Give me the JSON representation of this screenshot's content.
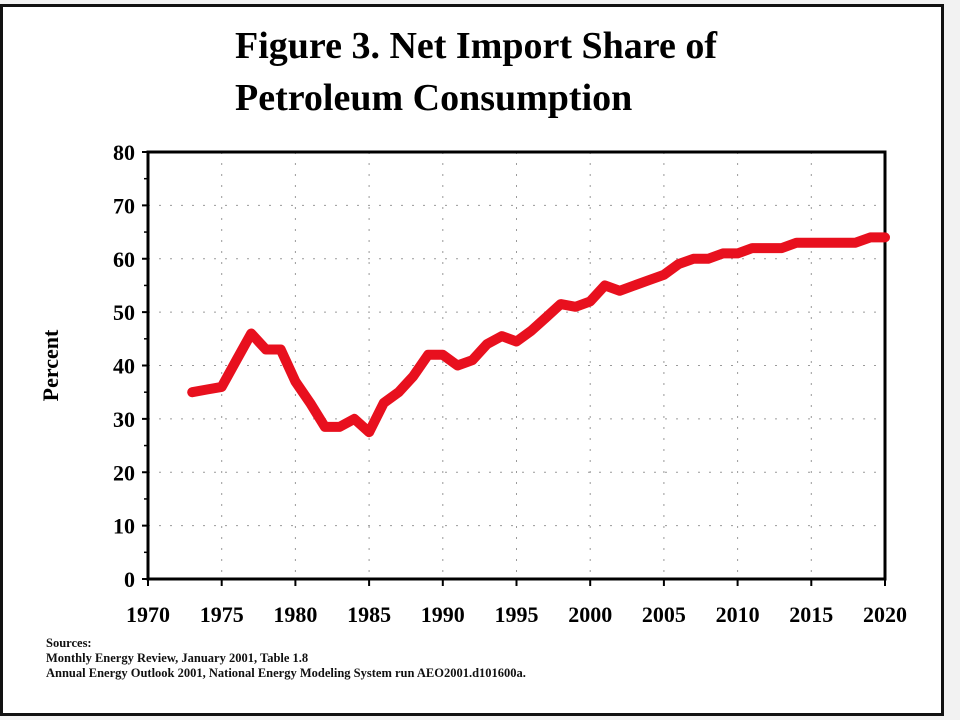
{
  "title_lines": [
    "Figure 3.  Net Import Share of",
    "Petroleum Consumption"
  ],
  "sources": {
    "heading": "Sources:",
    "lines": [
      "Monthly Energy Review, January 2001, Table 1.8",
      "Annual Energy Outlook 2001, National Energy Modeling System run AEO2001.d101600a."
    ]
  },
  "colors": {
    "line": "#e8101e",
    "axis": "#000000",
    "grid": "#9a9a9a"
  },
  "chart_data": {
    "type": "line",
    "title": "Figure 3.  Net Import Share of Petroleum Consumption",
    "xlabel": "",
    "ylabel": "Percent",
    "xlim": [
      1970,
      2020
    ],
    "ylim": [
      0,
      80
    ],
    "xticks": [
      1970,
      1975,
      1980,
      1985,
      1990,
      1995,
      2000,
      2005,
      2010,
      2015,
      2020
    ],
    "yticks": [
      0,
      10,
      20,
      30,
      40,
      50,
      60,
      70,
      80
    ],
    "grid": true,
    "legend": "none",
    "series": [
      {
        "x": [
          1973,
          1974,
          1975,
          1976,
          1977,
          1978,
          1979,
          1980,
          1981,
          1982,
          1983,
          1984,
          1985,
          1986,
          1987,
          1988,
          1989,
          1990,
          1991,
          1992,
          1993,
          1994,
          1995,
          1996,
          1997,
          1998,
          1999,
          2000,
          2001,
          2002,
          2003,
          2004,
          2005,
          2006,
          2007,
          2008,
          2009,
          2010,
          2011,
          2012,
          2013,
          2014,
          2015,
          2016,
          2017,
          2018,
          2019,
          2020
        ],
        "values": [
          35,
          35.5,
          36,
          41,
          46,
          43,
          43,
          37,
          33,
          28.5,
          28.5,
          30,
          27.5,
          33,
          35,
          38,
          42,
          42,
          40,
          41,
          44,
          45.5,
          44.5,
          46.5,
          49,
          51.5,
          51,
          52,
          55,
          54,
          55,
          56,
          57,
          59,
          60,
          60,
          61,
          61,
          62,
          62,
          62,
          63,
          63,
          63,
          63,
          63,
          64,
          64
        ]
      }
    ]
  }
}
